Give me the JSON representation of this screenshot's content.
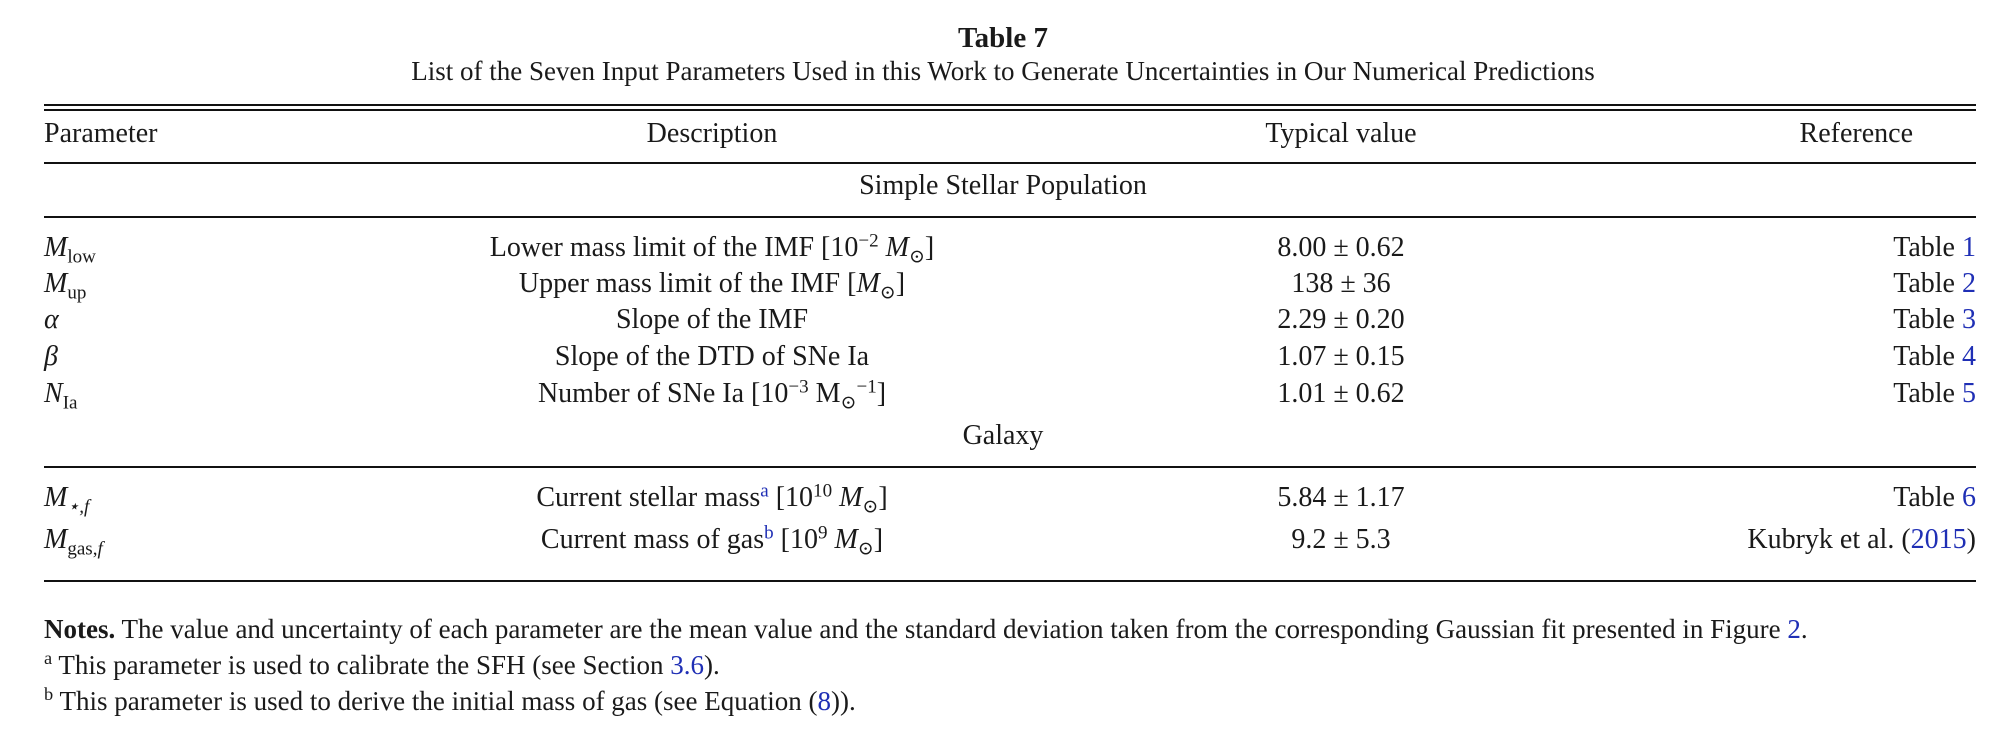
{
  "caption": {
    "label": "Table 7",
    "text": "List of the Seven Input Parameters Used in this Work to Generate Uncertainties in Our Numerical Predictions"
  },
  "columns": [
    "Parameter",
    "Description",
    "Typical value",
    "Reference"
  ],
  "sections": [
    {
      "title": "Simple Stellar Population",
      "rows": [
        {
          "symbol": "M",
          "subscript": "low",
          "description": "Lower mass limit of the IMF",
          "unit_base": "10",
          "unit_exp": "−2",
          "unit_symbol": "M",
          "unit_sub": "⊙",
          "value": "8.00 ± 0.62",
          "ref_text": "Table",
          "ref_link": "1"
        },
        {
          "symbol": "M",
          "subscript": "up",
          "description": "Upper mass limit of the IMF",
          "unit_symbol": "M",
          "unit_sub": "⊙",
          "value": "138 ± 36",
          "ref_text": "Table",
          "ref_link": "2"
        },
        {
          "symbol": "α",
          "description": "Slope of the IMF",
          "value": "2.29 ± 0.20",
          "ref_text": "Table",
          "ref_link": "3"
        },
        {
          "symbol": "β",
          "description": "Slope of the DTD of SNe Ia",
          "value": "1.07 ± 0.15",
          "ref_text": "Table",
          "ref_link": "4"
        },
        {
          "symbol": "N",
          "subscript": "Ia",
          "description": "Number of SNe Ia",
          "unit_base": "10",
          "unit_exp": "−3",
          "unit_symbol": "M",
          "unit_sub": "⊙",
          "unit_sup": "−1",
          "value": "1.01 ± 0.62",
          "ref_text": "Table",
          "ref_link": "5"
        }
      ]
    },
    {
      "title": "Galaxy",
      "rows": [
        {
          "symbol": "M",
          "subscript": "⋆,f",
          "description": "Current stellar mass",
          "footnote": "a",
          "unit_base": "10",
          "unit_exp": "10",
          "unit_symbol": "M",
          "unit_sub": "⊙",
          "value": "5.84 ± 1.17",
          "ref_text": "Table",
          "ref_link": "6"
        },
        {
          "symbol": "M",
          "subscript": "gas,",
          "subscript_italic": "f",
          "description": "Current mass of gas",
          "footnote": "b",
          "unit_base": "10",
          "unit_exp": "9",
          "unit_symbol": "M",
          "unit_sub": "⊙",
          "value": "9.2 ± 5.3",
          "ref_text": "Kubryk et al.",
          "ref_link": "2015"
        }
      ]
    }
  ],
  "notes": {
    "label": "Notes.",
    "text": "The value and uncertainty of each parameter are the mean value and the standard deviation taken from the corresponding Gaussian fit presented in Figure",
    "figure_link": "2"
  },
  "footnotes": [
    {
      "mark": "a",
      "text": "This parameter is used to calibrate the SFH (see Section",
      "link": "3.6",
      "after": ")."
    },
    {
      "mark": "b",
      "text": "This parameter is used to derive the initial mass of gas (see Equation (",
      "link": "8",
      "after": "))."
    }
  ]
}
